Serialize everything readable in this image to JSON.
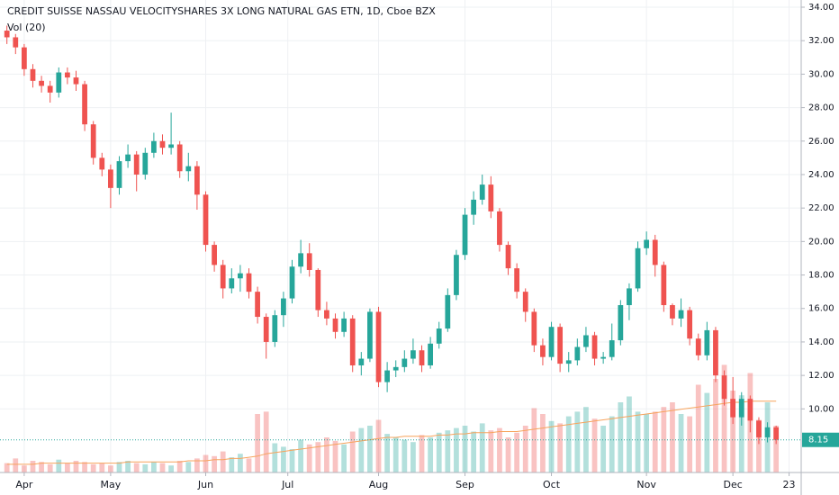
{
  "chart_data": {
    "type": "candlestick",
    "title": "CREDIT SUISSE NASSAU VELOCITYSHARES 3X LONG NATURAL GAS ETN, 1D, Cboe BZX",
    "volume_title": "Vol (20)",
    "up_color": "#26a69a",
    "down_color": "#ef5350",
    "ma_color": "#f7a35c",
    "grid": true,
    "xlim": [
      -0.8,
      91.9
    ],
    "xticks": [
      {
        "value": 2,
        "label": "Apr"
      },
      {
        "value": 12,
        "label": "May"
      },
      {
        "value": 23,
        "label": "Jun"
      },
      {
        "value": 32.5,
        "label": "Jul"
      },
      {
        "value": 43,
        "label": "Aug"
      },
      {
        "value": 53,
        "label": "Sep"
      },
      {
        "value": 63,
        "label": "Oct"
      },
      {
        "value": 74,
        "label": "Nov"
      },
      {
        "value": 84,
        "label": "Dec"
      },
      {
        "value": 90.5,
        "label": "23"
      }
    ],
    "ylim": [
      6.2,
      34.43
    ],
    "yticks": [
      {
        "value": 10,
        "label": "10.00"
      },
      {
        "value": 12,
        "label": "12.00"
      },
      {
        "value": 14,
        "label": "14.00"
      },
      {
        "value": 16,
        "label": "16.00"
      },
      {
        "value": 18,
        "label": "18.00"
      },
      {
        "value": 20,
        "label": "20.00"
      },
      {
        "value": 22,
        "label": "22.00"
      },
      {
        "value": 24,
        "label": "24.00"
      },
      {
        "value": 26,
        "label": "26.00"
      },
      {
        "value": 28,
        "label": "28.00"
      },
      {
        "value": 30,
        "label": "30.00"
      },
      {
        "value": 32,
        "label": "32.00"
      },
      {
        "value": 34,
        "label": "34.00"
      }
    ],
    "last_price": 8.15,
    "open": [
      32.6,
      32.2,
      31.6,
      30.3,
      29.6,
      29.3,
      28.9,
      30.1,
      29.8,
      29.4,
      27.0,
      25.0,
      24.3,
      23.2,
      24.8,
      25.2,
      24.0,
      25.3,
      26.0,
      25.6,
      25.8,
      24.2,
      24.5,
      22.8,
      19.8,
      18.6,
      17.2,
      17.8,
      18.1,
      17.0,
      15.5,
      14.0,
      15.6,
      16.6,
      18.5,
      19.3,
      18.3,
      15.9,
      15.4,
      14.6,
      15.4,
      12.6,
      13.0,
      15.8,
      11.6,
      12.3,
      12.5,
      13.0,
      13.5,
      12.6,
      13.9,
      14.8,
      16.8,
      19.2,
      21.6,
      22.5,
      23.4,
      21.8,
      19.8,
      18.4,
      17.0,
      15.8,
      13.8,
      13.1,
      14.9,
      12.7,
      12.9,
      13.7,
      14.4,
      13.0,
      13.1,
      14.1,
      16.2,
      17.2,
      19.6,
      20.1,
      18.6,
      16.2,
      15.4,
      15.9,
      14.2,
      13.2,
      14.7,
      12.0,
      10.6,
      9.5,
      10.6,
      9.3,
      8.3,
      8.9
    ],
    "high": [
      32.9,
      32.4,
      31.8,
      30.6,
      29.9,
      29.6,
      30.4,
      30.4,
      30.2,
      29.6,
      27.2,
      25.3,
      24.6,
      25.1,
      25.8,
      25.4,
      25.6,
      26.5,
      26.4,
      27.7,
      26.0,
      25.3,
      24.8,
      23.0,
      20.0,
      18.9,
      18.4,
      18.6,
      18.4,
      17.3,
      15.7,
      15.9,
      17.0,
      18.9,
      20.1,
      19.9,
      18.4,
      16.4,
      15.7,
      15.8,
      15.6,
      13.4,
      16.0,
      16.1,
      12.8,
      12.9,
      13.5,
      14.2,
      13.8,
      14.3,
      15.2,
      17.2,
      19.5,
      22.0,
      23.0,
      24.0,
      23.9,
      22.0,
      20.0,
      18.7,
      17.2,
      16.0,
      14.2,
      15.2,
      15.1,
      13.4,
      14.2,
      14.9,
      14.6,
      13.4,
      15.1,
      16.5,
      17.5,
      20.0,
      20.6,
      20.4,
      18.8,
      16.3,
      16.6,
      16.1,
      14.5,
      15.2,
      14.9,
      12.3,
      11.9,
      11.0,
      10.8,
      9.5,
      9.2,
      9.0
    ],
    "low": [
      31.8,
      31.2,
      29.9,
      29.2,
      28.9,
      28.3,
      28.6,
      29.4,
      29.0,
      26.6,
      24.6,
      23.9,
      22.0,
      22.8,
      24.4,
      23.0,
      23.7,
      25.0,
      25.2,
      25.2,
      23.8,
      23.6,
      21.9,
      19.4,
      18.2,
      16.6,
      16.9,
      17.0,
      16.6,
      15.1,
      13.0,
      13.7,
      14.9,
      16.3,
      18.1,
      17.9,
      15.5,
      15.0,
      14.2,
      14.3,
      12.2,
      12.0,
      12.8,
      11.3,
      11.0,
      11.9,
      12.2,
      12.7,
      12.2,
      12.4,
      13.6,
      14.6,
      16.5,
      18.9,
      21.0,
      22.2,
      21.4,
      19.4,
      18.0,
      16.6,
      15.2,
      13.4,
      12.6,
      12.9,
      12.2,
      12.2,
      12.6,
      13.4,
      12.6,
      12.7,
      12.9,
      13.8,
      15.3,
      17.0,
      19.2,
      17.9,
      15.8,
      15.0,
      14.9,
      13.8,
      12.9,
      12.9,
      11.6,
      10.2,
      9.1,
      9.0,
      8.6,
      7.9,
      8.0,
      7.9
    ],
    "close": [
      32.2,
      31.6,
      30.3,
      29.6,
      29.3,
      28.9,
      30.1,
      29.8,
      29.4,
      27.0,
      25.0,
      24.3,
      23.2,
      24.8,
      25.2,
      24.0,
      25.3,
      26.0,
      25.6,
      25.8,
      24.2,
      24.5,
      22.8,
      19.8,
      18.6,
      17.2,
      17.8,
      18.1,
      17.0,
      15.5,
      14.0,
      15.6,
      16.6,
      18.5,
      19.3,
      18.3,
      15.9,
      15.4,
      14.6,
      15.4,
      12.6,
      13.0,
      15.8,
      11.6,
      12.3,
      12.5,
      13.0,
      13.5,
      12.6,
      13.9,
      14.8,
      16.8,
      19.2,
      21.6,
      22.5,
      23.4,
      21.8,
      19.8,
      18.4,
      17.0,
      15.8,
      13.8,
      13.1,
      14.9,
      12.7,
      12.9,
      13.7,
      14.4,
      13.0,
      13.1,
      14.1,
      16.2,
      17.2,
      19.6,
      20.1,
      18.6,
      16.2,
      15.4,
      15.9,
      14.2,
      13.2,
      14.7,
      12.0,
      10.6,
      9.5,
      10.6,
      9.3,
      8.3,
      8.9,
      8.15
    ],
    "vlim": [
      0,
      100
    ],
    "volume": [
      8,
      12,
      6,
      10,
      9,
      7,
      11,
      8,
      10,
      9,
      7,
      8,
      6,
      9,
      10,
      8,
      7,
      9,
      8,
      6,
      10,
      9,
      12,
      15,
      14,
      18,
      13,
      16,
      12,
      50,
      52,
      25,
      22,
      20,
      28,
      24,
      26,
      30,
      27,
      24,
      35,
      38,
      40,
      45,
      33,
      30,
      28,
      26,
      32,
      30,
      34,
      36,
      38,
      40,
      35,
      42,
      36,
      38,
      30,
      34,
      40,
      55,
      50,
      44,
      42,
      48,
      52,
      56,
      46,
      40,
      48,
      60,
      65,
      52,
      50,
      52,
      56,
      60,
      50,
      48,
      75,
      68,
      80,
      92,
      70,
      66,
      85,
      45,
      60,
      40
    ],
    "volume_ma": [
      7,
      7,
      7,
      7,
      8,
      8,
      8,
      8,
      8,
      8,
      8,
      8,
      8,
      8,
      9,
      9,
      9,
      9,
      9,
      9,
      9,
      10,
      10,
      10,
      11,
      11,
      12,
      12,
      13,
      14,
      16,
      17,
      18,
      19,
      20,
      21,
      22,
      23,
      24,
      25,
      26,
      27,
      28,
      29,
      30,
      30,
      31,
      31,
      31,
      31,
      32,
      32,
      33,
      33,
      34,
      34,
      34,
      35,
      35,
      35,
      36,
      37,
      38,
      39,
      40,
      41,
      42,
      43,
      44,
      45,
      46,
      47,
      48,
      49,
      50,
      51,
      52,
      53,
      54,
      55,
      56,
      57,
      58,
      59,
      60,
      60,
      61,
      61,
      61,
      61
    ]
  }
}
